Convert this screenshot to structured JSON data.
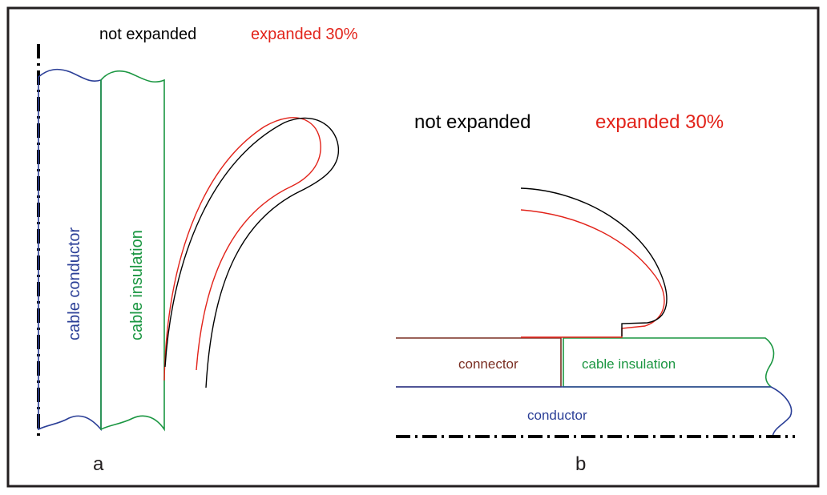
{
  "colors": {
    "frame": "#231f20",
    "not_expanded": "#000000",
    "expanded": "#e2231a",
    "conductor": "#2b3f97",
    "insulation": "#1a9641",
    "connector": "#7a2e22"
  },
  "panel_a": {
    "legend_not_expanded": "not expanded",
    "legend_expanded": "expanded 30%",
    "conductor_label": "cable conductor",
    "insulation_label": "cable insulation",
    "panel_letter": "a"
  },
  "panel_b": {
    "legend_not_expanded": "not expanded",
    "legend_expanded": "expanded 30%",
    "connector_label": "connector",
    "insulation_label": "cable insulation",
    "conductor_label": "conductor",
    "panel_letter": "b"
  }
}
